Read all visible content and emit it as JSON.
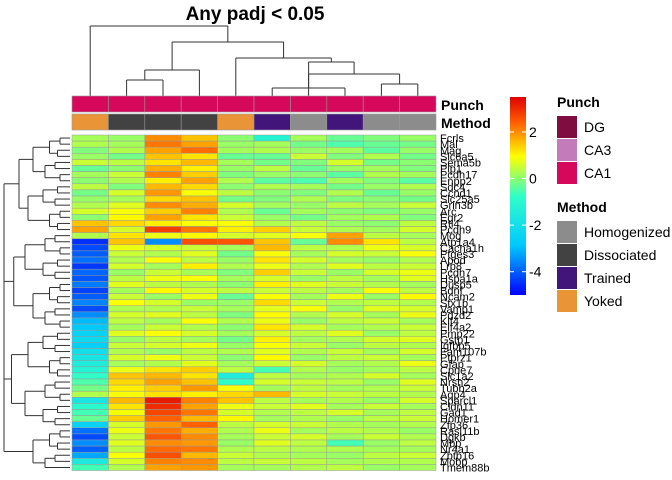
{
  "chart_data": {
    "type": "heatmap",
    "title": "Any padj < 0.05",
    "annotation_rows": [
      {
        "name": "Punch",
        "values": [
          "CA1",
          "CA1",
          "CA1",
          "CA1",
          "CA1",
          "CA1",
          "CA1",
          "CA1",
          "CA1",
          "CA1"
        ]
      },
      {
        "name": "Method",
        "values": [
          "Yoked",
          "Dissociated",
          "Dissociated",
          "Dissociated",
          "Yoked",
          "Trained",
          "Homogenized",
          "Trained",
          "Homogenized",
          "Homogenized"
        ]
      }
    ],
    "row_labels": [
      "Fcrls",
      "Mal",
      "Mag",
      "Slc6a5",
      "Sema5b",
      "Plp1",
      "Pcdh17",
      "Enpp2",
      "Sdc4",
      "Ccnd1",
      "Slc25a5",
      "Grin3b",
      "Arc",
      "Egr2",
      "Rtl4",
      "Pcdh9",
      "Mog",
      "Atp1a4",
      "Cacna1h",
      "Ptges3",
      "Apod",
      "Lrp8",
      "Pcdh7",
      "Hspa1a",
      "Dusp5",
      "Bdnf",
      "Ncam2",
      "Stx1b",
      "Vamp1",
      "Pdzd2",
      "Klf4",
      "Eif4a2",
      "Pmp22",
      "Gstp1",
      "Igfbp5",
      "Fam107b",
      "Ptprz1",
      "Gfap",
      "Cpne7",
      "Slc1a2",
      "Nrsn2",
      "Tubb2a",
      "Aqp4",
      "Sparcl1",
      "Cldn11",
      "Gad1",
      "Homer1",
      "Zfp36",
      "Rasl11b",
      "Dgkb",
      "Mbp",
      "Nr4a1",
      "Zbtb16",
      "Mobp",
      "Tmem88b"
    ],
    "values": [
      [
        0.2,
        0.1,
        2.0,
        1.5,
        0.0,
        -1.2,
        0.2,
        -0.3,
        -0.1,
        0.1
      ],
      [
        0.3,
        0.2,
        2.2,
        1.8,
        0.1,
        0.2,
        -0.2,
        -0.5,
        -0.3,
        -0.2
      ],
      [
        -0.1,
        0.3,
        1.8,
        2.3,
        0.2,
        0.3,
        0.1,
        0.2,
        -0.4,
        0.1
      ],
      [
        0.1,
        -0.2,
        1.5,
        1.2,
        -0.3,
        -0.3,
        0.5,
        -0.1,
        0.3,
        -0.2
      ],
      [
        0.5,
        0.4,
        1.2,
        1.6,
        0.2,
        -0.2,
        -0.1,
        0.6,
        -0.2,
        0.0
      ],
      [
        -0.3,
        0.0,
        1.7,
        1.1,
        0.1,
        0.4,
        -0.3,
        0.1,
        0.2,
        -0.1
      ],
      [
        0.2,
        0.5,
        2.1,
        1.4,
        -0.1,
        0.1,
        0.0,
        -0.4,
        0.3,
        0.2
      ],
      [
        0.0,
        0.3,
        1.1,
        1.8,
        0.3,
        -0.4,
        -0.5,
        0.2,
        -0.1,
        -0.4
      ],
      [
        0.4,
        -0.1,
        1.6,
        1.3,
        0.0,
        0.3,
        0.2,
        -0.2,
        0.1,
        0.3
      ],
      [
        -0.2,
        0.6,
        1.9,
        0.9,
        0.4,
        0.0,
        -0.1,
        0.3,
        -0.3,
        0.1
      ],
      [
        0.1,
        0.2,
        1.3,
        1.5,
        -0.2,
        -0.1,
        0.3,
        -0.1,
        0.0,
        -0.2
      ],
      [
        0.3,
        0.7,
        2.0,
        1.7,
        0.6,
        0.2,
        0.1,
        0.4,
        0.2,
        0.5
      ],
      [
        0.6,
        0.9,
        1.4,
        2.1,
        0.3,
        -0.3,
        0.2,
        0.0,
        -0.1,
        0.1
      ],
      [
        0.0,
        1.0,
        1.8,
        1.2,
        0.5,
        0.1,
        -0.2,
        0.2,
        0.3,
        -0.1
      ],
      [
        1.5,
        1.3,
        1.1,
        0.9,
        0.9,
        0.3,
        0.4,
        0.1,
        0.0,
        0.4
      ],
      [
        1.8,
        0.6,
        2.8,
        2.2,
        1.1,
        1.4,
        0.5,
        0.3,
        0.2,
        0.6
      ],
      [
        0.3,
        1.2,
        0.8,
        1.0,
        0.6,
        0.7,
        0.9,
        1.8,
        0.4,
        0.2
      ],
      [
        -4.5,
        1.5,
        -3.5,
        2.6,
        2.5,
        1.5,
        -0.3,
        2.0,
        1.2,
        0.4
      ],
      [
        -4.2,
        0.8,
        0.6,
        0.5,
        0.2,
        1.6,
        0.4,
        0.3,
        0.8,
        0.6
      ],
      [
        -4.0,
        0.5,
        0.3,
        0.7,
        -0.2,
        0.9,
        0.2,
        0.6,
        0.5,
        0.9
      ],
      [
        -3.8,
        0.3,
        0.9,
        0.4,
        0.1,
        1.2,
        0.6,
        0.2,
        0.1,
        0.3
      ],
      [
        -4.4,
        0.6,
        0.2,
        1.1,
        0.3,
        0.8,
        0.3,
        0.7,
        0.4,
        0.5
      ],
      [
        -3.9,
        0.1,
        0.5,
        0.2,
        -0.1,
        1.4,
        0.5,
        0.1,
        0.6,
        0.8
      ],
      [
        -4.1,
        0.4,
        0.8,
        0.9,
        0.2,
        0.6,
        0.1,
        0.4,
        0.2,
        0.7
      ],
      [
        -3.7,
        0.7,
        0.4,
        0.3,
        0.0,
        1.1,
        0.7,
        0.5,
        0.3,
        0.2
      ],
      [
        -4.3,
        0.2,
        1.0,
        0.6,
        0.4,
        0.5,
        0.4,
        0.2,
        0.9,
        0.4
      ],
      [
        -4.0,
        0.5,
        0.1,
        0.8,
        -0.3,
        0.9,
        0.2,
        0.8,
        0.1,
        1.0
      ],
      [
        -3.6,
        0.9,
        0.6,
        0.1,
        0.1,
        1.3,
        0.5,
        0.3,
        0.4,
        0.3
      ],
      [
        -4.2,
        0.3,
        0.3,
        0.5,
        0.2,
        0.7,
        0.9,
        0.1,
        0.7,
        0.6
      ],
      [
        -3.5,
        0.6,
        0.7,
        0.4,
        -0.1,
        1.0,
        0.3,
        0.6,
        0.2,
        0.8
      ],
      [
        -3.0,
        0.4,
        0.2,
        0.9,
        0.3,
        0.8,
        0.1,
        0.4,
        0.5,
        0.2
      ],
      [
        -2.8,
        0.2,
        0.5,
        0.3,
        0.0,
        1.2,
        0.6,
        0.2,
        0.3,
        0.5
      ],
      [
        -2.5,
        0.7,
        0.9,
        0.6,
        0.2,
        0.6,
        0.4,
        0.7,
        0.1,
        0.4
      ],
      [
        -2.2,
        0.1,
        0.4,
        0.2,
        -0.2,
        1.1,
        0.2,
        0.3,
        0.6,
        0.7
      ],
      [
        -2.6,
        0.5,
        0.6,
        0.8,
        0.1,
        0.9,
        0.5,
        0.1,
        0.4,
        0.3
      ],
      [
        -2.0,
        0.3,
        0.1,
        0.4,
        0.3,
        0.7,
        0.3,
        0.5,
        0.2,
        0.6
      ],
      [
        -1.8,
        0.6,
        0.8,
        0.5,
        0.0,
        1.0,
        0.1,
        0.4,
        0.5,
        0.2
      ],
      [
        -1.5,
        0.2,
        0.3,
        0.7,
        0.2,
        0.5,
        0.6,
        0.2,
        0.3,
        0.8
      ],
      [
        -1.2,
        0.8,
        1.2,
        1.4,
        0.4,
        -0.6,
        0.3,
        0.1,
        0.2,
        0.4
      ],
      [
        -0.8,
        1.5,
        1.6,
        1.2,
        -1.5,
        0.4,
        0.2,
        0.3,
        0.6,
        0.2
      ],
      [
        -0.5,
        1.3,
        1.8,
        1.5,
        -0.8,
        0.6,
        0.5,
        0.4,
        0.1,
        0.7
      ],
      [
        -0.2,
        1.1,
        1.4,
        1.9,
        0.9,
        0.2,
        0.4,
        0.2,
        0.3,
        0.5
      ],
      [
        0.3,
        0.9,
        1.2,
        1.1,
        1.3,
        1.6,
        0.6,
        0.5,
        0.4,
        0.3
      ],
      [
        -1.8,
        1.6,
        3.2,
        2.1,
        1.5,
        0.4,
        0.2,
        0.3,
        0.1,
        0.6
      ],
      [
        -1.0,
        1.2,
        3.0,
        1.8,
        0.8,
        0.5,
        0.7,
        0.2,
        0.5,
        0.2
      ],
      [
        -0.6,
        0.9,
        2.7,
        2.2,
        0.6,
        0.3,
        0.4,
        0.6,
        0.2,
        0.4
      ],
      [
        -0.3,
        1.4,
        2.4,
        1.6,
        1.0,
        0.2,
        0.3,
        0.1,
        0.4,
        0.5
      ],
      [
        -2.5,
        0.6,
        1.9,
        2.4,
        0.4,
        0.6,
        0.5,
        0.3,
        0.2,
        0.3
      ],
      [
        -3.8,
        0.8,
        2.2,
        1.7,
        0.3,
        0.8,
        0.2,
        0.4,
        0.3,
        0.1
      ],
      [
        -4.2,
        0.5,
        2.5,
        2.0,
        0.2,
        0.5,
        0.6,
        0.2,
        0.5,
        0.3
      ],
      [
        -3.5,
        0.7,
        2.0,
        1.9,
        0.1,
        0.7,
        0.4,
        -0.6,
        0.1,
        0.4
      ],
      [
        -4.0,
        0.4,
        2.3,
        2.2,
        0.3,
        0.4,
        0.3,
        0.3,
        0.2,
        0.2
      ],
      [
        -3.2,
        0.9,
        2.6,
        1.6,
        0.5,
        0.3,
        0.2,
        0.1,
        0.4,
        0.5
      ],
      [
        -1.6,
        0.6,
        2.1,
        2.0,
        0.4,
        0.5,
        0.4,
        0.2,
        0.3,
        0.3
      ],
      [
        -0.6,
        0.3,
        1.8,
        1.9,
        0.2,
        0.2,
        0.3,
        0.4,
        0.1,
        0.2
      ]
    ],
    "color_scale": {
      "min": -5,
      "max": 3.5,
      "ticks": [
        2,
        0,
        -2,
        -4
      ]
    },
    "legends": {
      "punch": {
        "title": "Punch",
        "items": [
          {
            "label": "DG",
            "color": "#7f0d3f"
          },
          {
            "label": "CA3",
            "color": "#c47bb9"
          },
          {
            "label": "CA1",
            "color": "#d6085c"
          }
        ]
      },
      "method": {
        "title": "Method",
        "items": [
          {
            "label": "Homogenized",
            "color": "#8c8c8c"
          },
          {
            "label": "Dissociated",
            "color": "#424242"
          },
          {
            "label": "Trained",
            "color": "#42157a"
          },
          {
            "label": "Yoked",
            "color": "#ea9438"
          }
        ]
      }
    }
  }
}
